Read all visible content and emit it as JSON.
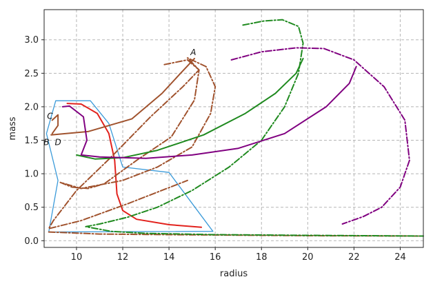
{
  "chart_data": {
    "type": "line",
    "title": "",
    "xlabel": "radius",
    "ylabel": "mass",
    "xlim": [
      8.6,
      25.0
    ],
    "ylim": [
      -0.1,
      3.45
    ],
    "xticks": [
      10,
      12,
      14,
      16,
      18,
      20,
      22,
      24
    ],
    "yticks": [
      0.0,
      0.5,
      1.0,
      1.5,
      2.0,
      2.5,
      3.0
    ],
    "grid": true,
    "legend": "none",
    "series": [
      {
        "color": "#3a9ad9",
        "style": "solid",
        "width": 1.3,
        "points": [
          [
            9.1,
            2.09
          ],
          [
            10.6,
            2.09
          ],
          [
            11.4,
            1.75
          ],
          [
            12.0,
            1.1
          ],
          [
            14.0,
            1.02
          ],
          [
            15.9,
            0.14
          ],
          [
            8.8,
            0.13
          ],
          [
            9.2,
            0.9
          ],
          [
            8.7,
            1.6
          ],
          [
            9.1,
            2.09
          ]
        ]
      },
      {
        "color": "#e2211c",
        "style": "solid",
        "width": 2,
        "points": [
          [
            9.6,
            2.05
          ],
          [
            10.2,
            2.04
          ],
          [
            10.9,
            1.9
          ],
          [
            11.4,
            1.6
          ],
          [
            11.65,
            1.2
          ],
          [
            11.75,
            0.7
          ],
          [
            12.0,
            0.45
          ],
          [
            12.6,
            0.32
          ],
          [
            14.0,
            0.24
          ],
          [
            15.4,
            0.2
          ]
        ]
      },
      {
        "color": "#a0522d",
        "style": "solid",
        "width": 2,
        "points": [
          [
            8.9,
            1.58
          ],
          [
            10.5,
            1.63
          ],
          [
            12.4,
            1.82
          ],
          [
            13.7,
            2.2
          ],
          [
            14.5,
            2.5
          ],
          [
            15.1,
            2.72
          ]
        ]
      },
      {
        "color": "#a0522d",
        "style": "solid",
        "width": 2,
        "points": [
          [
            8.95,
            1.6
          ],
          [
            9.2,
            1.72
          ],
          [
            9.2,
            1.88
          ],
          [
            8.95,
            1.8
          ]
        ]
      },
      {
        "color": "#a0522d",
        "style": "dashdot",
        "width": 2,
        "points": [
          [
            13.8,
            2.63
          ],
          [
            14.8,
            2.7
          ],
          [
            15.3,
            2.55
          ],
          [
            15.1,
            2.1
          ],
          [
            14.1,
            1.55
          ],
          [
            12.6,
            1.2
          ],
          [
            11.8,
            1.0
          ],
          [
            11.2,
            0.85
          ],
          [
            10.5,
            0.78
          ],
          [
            9.8,
            0.8
          ],
          [
            9.3,
            0.87
          ],
          [
            10.2,
            0.78
          ],
          [
            12.0,
            0.9
          ],
          [
            13.5,
            1.1
          ],
          [
            15.0,
            1.4
          ],
          [
            15.8,
            1.9
          ],
          [
            16.0,
            2.3
          ],
          [
            15.6,
            2.6
          ],
          [
            14.8,
            2.73
          ],
          [
            15.3,
            2.55
          ],
          [
            14.6,
            2.3
          ],
          [
            13.2,
            1.85
          ],
          [
            11.5,
            1.25
          ],
          [
            10.0,
            0.75
          ],
          [
            9.0,
            0.3
          ],
          [
            8.8,
            0.18
          ],
          [
            10.2,
            0.3
          ],
          [
            12.2,
            0.55
          ],
          [
            14.8,
            0.9
          ]
        ]
      },
      {
        "color": "#a0522d",
        "style": "dashdot",
        "width": 2,
        "points": [
          [
            8.8,
            0.13
          ],
          [
            11.0,
            0.1
          ],
          [
            14.0,
            0.09
          ],
          [
            16.0,
            0.085
          ],
          [
            18.0,
            0.08
          ],
          [
            20.0,
            0.075
          ],
          [
            25.0,
            0.07
          ]
        ]
      },
      {
        "color": "#1f8a1f",
        "style": "solid",
        "width": 2,
        "points": [
          [
            10.0,
            1.28
          ],
          [
            10.8,
            1.22
          ],
          [
            12.0,
            1.24
          ],
          [
            13.5,
            1.35
          ],
          [
            15.5,
            1.58
          ],
          [
            17.3,
            1.9
          ],
          [
            18.6,
            2.2
          ],
          [
            19.5,
            2.5
          ],
          [
            19.8,
            2.72
          ]
        ]
      },
      {
        "color": "#1f8a1f",
        "style": "dashdot",
        "width": 2,
        "points": [
          [
            17.2,
            3.22
          ],
          [
            18.1,
            3.28
          ],
          [
            18.9,
            3.3
          ],
          [
            19.6,
            3.2
          ],
          [
            19.8,
            2.95
          ],
          [
            19.6,
            2.5
          ],
          [
            19.0,
            2.0
          ],
          [
            18.0,
            1.5
          ],
          [
            16.6,
            1.1
          ],
          [
            15.0,
            0.75
          ],
          [
            13.5,
            0.5
          ],
          [
            12.2,
            0.35
          ],
          [
            11.0,
            0.25
          ],
          [
            10.4,
            0.21
          ],
          [
            11.5,
            0.14
          ],
          [
            13.0,
            0.11
          ],
          [
            16.0,
            0.09
          ],
          [
            20.0,
            0.08
          ],
          [
            25.0,
            0.07
          ]
        ]
      },
      {
        "color": "#800080",
        "style": "solid",
        "width": 2,
        "points": [
          [
            9.4,
            2.0
          ],
          [
            9.7,
            2.01
          ],
          [
            10.3,
            1.85
          ],
          [
            10.45,
            1.5
          ],
          [
            10.2,
            1.28
          ],
          [
            11.0,
            1.25
          ],
          [
            13.0,
            1.23
          ],
          [
            15.0,
            1.28
          ],
          [
            17.0,
            1.38
          ],
          [
            19.0,
            1.6
          ],
          [
            20.8,
            2.0
          ],
          [
            21.8,
            2.35
          ],
          [
            22.1,
            2.6
          ]
        ]
      },
      {
        "color": "#800080",
        "style": "dashdot",
        "width": 2,
        "points": [
          [
            16.7,
            2.7
          ],
          [
            18.0,
            2.82
          ],
          [
            19.5,
            2.88
          ],
          [
            20.7,
            2.87
          ],
          [
            22.0,
            2.7
          ],
          [
            23.3,
            2.3
          ],
          [
            24.2,
            1.8
          ],
          [
            24.4,
            1.2
          ],
          [
            24.0,
            0.8
          ],
          [
            23.2,
            0.5
          ],
          [
            22.4,
            0.36
          ],
          [
            21.5,
            0.25
          ]
        ]
      }
    ],
    "annotations": [
      {
        "text": "A",
        "x": 15.05,
        "y": 2.77
      },
      {
        "text": "C",
        "x": 8.85,
        "y": 1.82
      },
      {
        "text": "B",
        "x": 8.7,
        "y": 1.43
      },
      {
        "text": "D",
        "x": 9.2,
        "y": 1.43
      }
    ]
  }
}
